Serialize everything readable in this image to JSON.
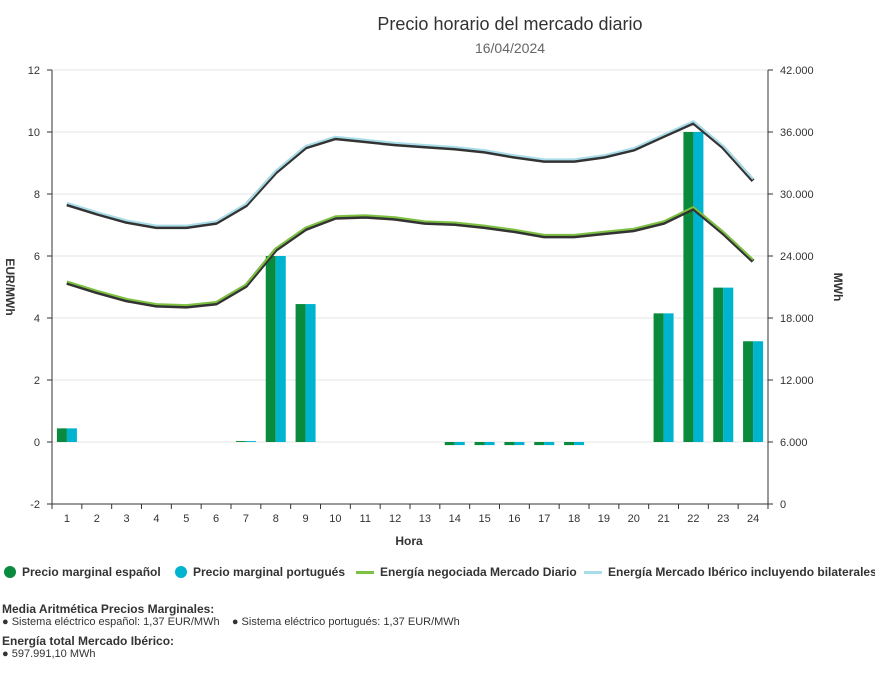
{
  "chart_data": {
    "type": "bar",
    "title": "Precio horario del mercado diario",
    "subtitle": "16/04/2024",
    "xlabel": "Hora",
    "ylabel": "EUR/MWh",
    "y2label": "MWh",
    "categories": [
      "1",
      "2",
      "3",
      "4",
      "5",
      "6",
      "7",
      "8",
      "9",
      "10",
      "11",
      "12",
      "13",
      "14",
      "15",
      "16",
      "17",
      "18",
      "19",
      "20",
      "21",
      "22",
      "23",
      "24"
    ],
    "ylim": [
      -2,
      12
    ],
    "yticks": [
      "-2",
      "0",
      "2",
      "4",
      "6",
      "8",
      "10",
      "12"
    ],
    "y2lim": [
      0,
      42000
    ],
    "y2ticks": [
      "0",
      "6.000",
      "12.000",
      "18.000",
      "24.000",
      "30.000",
      "36.000",
      "42.000"
    ],
    "series": [
      {
        "name": "Precio marginal español",
        "kind": "bar",
        "axis": "left",
        "color": "#0a8a3c",
        "values": [
          0.44,
          0,
          0,
          0,
          0,
          0,
          0.03,
          6.0,
          4.45,
          0,
          0,
          0,
          0,
          -0.1,
          -0.1,
          -0.1,
          -0.1,
          -0.1,
          0,
          0,
          4.15,
          10.0,
          4.98,
          3.25
        ]
      },
      {
        "name": "Precio marginal portugués",
        "kind": "bar",
        "axis": "left",
        "color": "#00b4d0",
        "values": [
          0.44,
          0,
          0,
          0,
          0,
          0,
          0.03,
          6.0,
          4.45,
          0,
          0,
          0,
          0,
          -0.1,
          -0.1,
          -0.1,
          -0.1,
          -0.1,
          0,
          0,
          4.15,
          10.0,
          4.98,
          3.25
        ]
      },
      {
        "name": "Energía negociada Mercado Diario",
        "kind": "line",
        "axis": "right",
        "color": "#7dc142",
        "values": [
          21400,
          20500,
          19700,
          19200,
          19100,
          19400,
          21100,
          24600,
          26600,
          27700,
          27800,
          27600,
          27200,
          27100,
          26800,
          26400,
          25900,
          25900,
          26200,
          26500,
          27200,
          28600,
          26200,
          23500
        ]
      },
      {
        "name": "Energía Mercado Ibérico incluyendo bilaterales",
        "kind": "line",
        "axis": "right",
        "color": "#a8dce8",
        "values": [
          29000,
          28100,
          27300,
          26800,
          26800,
          27200,
          28900,
          32100,
          34500,
          35400,
          35100,
          34800,
          34600,
          34400,
          34100,
          33600,
          33200,
          33200,
          33600,
          34300,
          35600,
          36900,
          34500,
          31300
        ]
      }
    ],
    "grid": true,
    "legend_position": "bottom"
  },
  "legend": {
    "items": [
      {
        "label": "Precio marginal español",
        "color": "#0a8a3c"
      },
      {
        "label": "Precio marginal portugués",
        "color": "#00b4d0"
      },
      {
        "label": "Energía negociada Mercado Diario",
        "color": "#7dc142"
      },
      {
        "label": "Energía Mercado Ibérico incluyendo bilaterales",
        "color": "#a8dce8"
      }
    ]
  },
  "summary": {
    "price_heading": "Media Aritmética Precios Marginales:",
    "spanish_price": "Sistema eléctrico español: 1,37 EUR/MWh",
    "portuguese_price": "Sistema eléctrico portugués: 1,37 EUR/MWh",
    "energy_heading": "Energía total Mercado Ibérico:",
    "energy_total": "597.991,10 MWh",
    "bullet": "●"
  }
}
